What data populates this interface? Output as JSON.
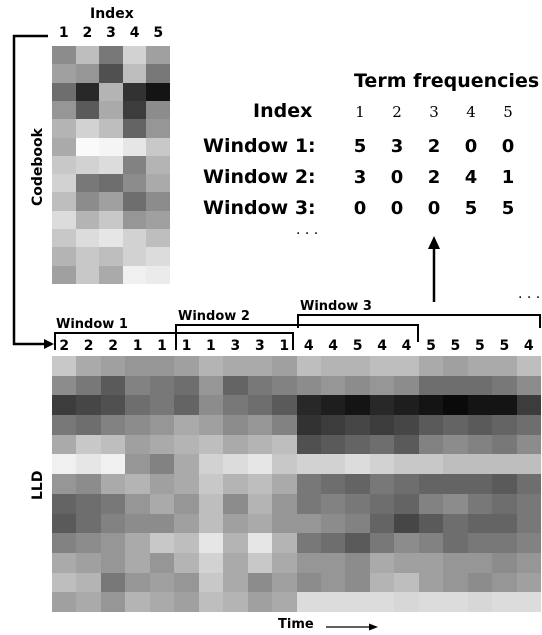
{
  "codebook": {
    "axis_title": "Index",
    "side_label": "Codebook",
    "column_indices": [
      "1",
      "2",
      "3",
      "4",
      "5"
    ],
    "cells": [
      [
        140,
        190,
        120,
        210,
        160
      ],
      [
        160,
        150,
        80,
        190,
        120
      ],
      [
        110,
        40,
        180,
        50,
        20
      ],
      [
        150,
        90,
        170,
        60,
        140
      ],
      [
        180,
        210,
        190,
        100,
        150
      ],
      [
        170,
        250,
        245,
        230,
        200
      ],
      [
        200,
        210,
        220,
        130,
        180
      ],
      [
        210,
        120,
        110,
        140,
        170
      ],
      [
        190,
        140,
        160,
        110,
        140
      ],
      [
        220,
        180,
        200,
        150,
        160
      ],
      [
        200,
        220,
        230,
        210,
        190
      ],
      [
        180,
        200,
        190,
        210,
        220
      ],
      [
        160,
        200,
        170,
        240,
        235
      ]
    ]
  },
  "term_frequencies": {
    "title": "Term frequencies",
    "index_label": "Index",
    "indices": [
      "1",
      "2",
      "3",
      "4",
      "5"
    ],
    "rows": [
      {
        "label": "Window 1:",
        "values": [
          "5",
          "3",
          "2",
          "0",
          "0"
        ]
      },
      {
        "label": "Window 2:",
        "values": [
          "3",
          "0",
          "2",
          "4",
          "1"
        ]
      },
      {
        "label": "Window 3:",
        "values": [
          "0",
          "0",
          "0",
          "5",
          "5"
        ]
      }
    ],
    "continuation": "· · ·"
  },
  "windows": [
    {
      "label": "Window 1"
    },
    {
      "label": "Window 2"
    },
    {
      "label": "Window 3"
    }
  ],
  "top_continuation": "· · ·",
  "sequence": [
    "2",
    "2",
    "2",
    "1",
    "1",
    "1",
    "1",
    "3",
    "3",
    "1",
    "4",
    "4",
    "5",
    "4",
    "4",
    "5",
    "5",
    "5",
    "5",
    "4"
  ],
  "lld": {
    "side_label": "LLD",
    "time_label": "Time",
    "cells": [
      [
        200,
        170,
        160,
        150,
        150,
        160,
        180,
        170,
        170,
        160,
        190,
        180,
        180,
        190,
        190,
        170,
        160,
        170,
        170,
        190
      ],
      [
        140,
        120,
        90,
        130,
        120,
        110,
        150,
        100,
        120,
        130,
        140,
        150,
        140,
        150,
        140,
        110,
        110,
        110,
        120,
        140
      ],
      [
        60,
        70,
        80,
        110,
        120,
        100,
        140,
        120,
        110,
        90,
        40,
        30,
        20,
        40,
        30,
        20,
        10,
        20,
        20,
        60
      ],
      [
        120,
        110,
        130,
        140,
        150,
        170,
        160,
        140,
        150,
        130,
        50,
        60,
        70,
        60,
        70,
        90,
        100,
        90,
        100,
        110
      ],
      [
        170,
        200,
        190,
        160,
        170,
        180,
        190,
        170,
        180,
        190,
        80,
        90,
        100,
        110,
        90,
        130,
        140,
        130,
        120,
        140
      ],
      [
        240,
        230,
        240,
        150,
        130,
        170,
        210,
        220,
        230,
        200,
        210,
        210,
        220,
        210,
        200,
        200,
        190,
        190,
        190,
        190
      ],
      [
        150,
        140,
        170,
        180,
        160,
        170,
        200,
        180,
        190,
        170,
        120,
        110,
        100,
        120,
        110,
        100,
        100,
        100,
        90,
        110
      ],
      [
        100,
        110,
        120,
        150,
        170,
        150,
        190,
        140,
        180,
        150,
        120,
        130,
        120,
        110,
        100,
        130,
        140,
        120,
        110,
        120
      ],
      [
        90,
        110,
        130,
        140,
        140,
        160,
        190,
        160,
        170,
        150,
        150,
        140,
        130,
        100,
        70,
        90,
        110,
        100,
        100,
        120
      ],
      [
        130,
        140,
        150,
        170,
        200,
        190,
        230,
        180,
        230,
        180,
        120,
        110,
        90,
        120,
        140,
        130,
        110,
        120,
        120,
        130
      ],
      [
        170,
        160,
        150,
        170,
        150,
        180,
        210,
        170,
        200,
        170,
        150,
        150,
        140,
        170,
        160,
        160,
        150,
        150,
        140,
        150
      ],
      [
        190,
        180,
        120,
        150,
        160,
        150,
        200,
        170,
        140,
        160,
        140,
        150,
        140,
        180,
        190,
        160,
        150,
        140,
        150,
        160
      ],
      [
        160,
        170,
        150,
        180,
        170,
        160,
        190,
        180,
        160,
        170,
        220,
        220,
        220,
        220,
        215,
        220,
        220,
        215,
        220,
        220
      ]
    ]
  }
}
